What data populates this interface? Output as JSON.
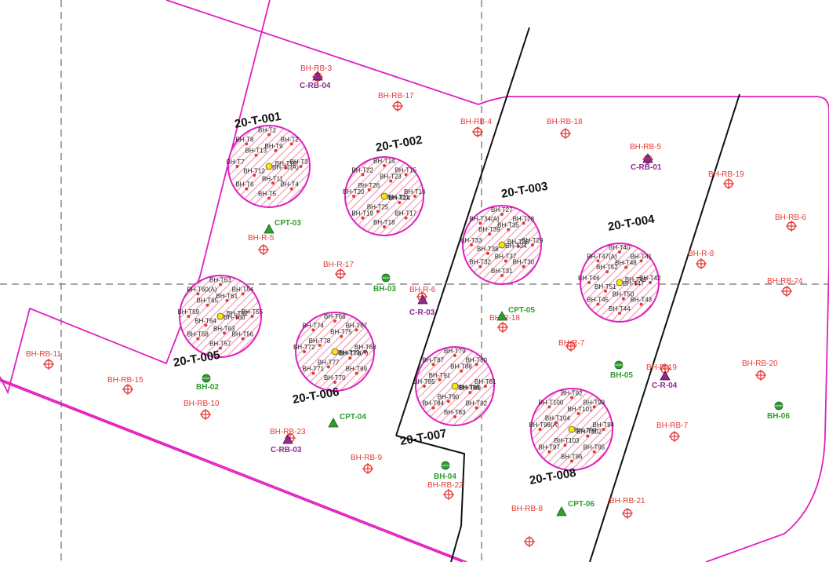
{
  "colors": {
    "boundary": "#e020c0",
    "grid_line": "#888888",
    "fault_line": "#111111",
    "borehole_red": "#e53935",
    "cpt_green": "#2e9e2e",
    "crb_purple": "#8e2a8e",
    "tank_hatch": "#f2a0b8"
  },
  "tanks": [
    {
      "id": "t1",
      "label": "20-T-001",
      "center_label": "BH-T7(A)",
      "boreholes": [
        "BH-T1",
        "BH-T2",
        "BH-T3",
        "BH-T4",
        "BH-T5",
        "BH-T6",
        "BH-T7",
        "BH-T8",
        "BH-T9",
        "BH-T10",
        "BH-T11",
        "BH-T12",
        "BH-T13"
      ]
    },
    {
      "id": "t2",
      "label": "20-T-002",
      "center_label": "BH-T21",
      "boreholes": [
        "BH-T14",
        "BH-T15",
        "BH-T16",
        "BH-T17",
        "BH-T18",
        "BH-T19",
        "BH-T20",
        "BH-T22",
        "BH-T23",
        "BH-T24",
        "BH-T25",
        "BH-T26"
      ]
    },
    {
      "id": "t3",
      "label": "20-T-003",
      "center_label": "BH-T34",
      "boreholes": [
        "BH-T27",
        "BH-T28",
        "BH-T29",
        "BH-T30",
        "BH-T31",
        "BH-T32",
        "BH-T33",
        "BH-T34(A)",
        "BH-T35",
        "BH-T36",
        "BH-T37",
        "BH-T38",
        "BH-T39"
      ]
    },
    {
      "id": "t4",
      "label": "20-T-004",
      "center_label": "BH-T47",
      "boreholes": [
        "BH-T40",
        "BH-T41",
        "BH-T42",
        "BH-T43",
        "BH-T44",
        "BH-T45",
        "BH-T46",
        "BH-T47(A)",
        "BH-T48",
        "BH-T49",
        "BH-T50",
        "BH-T51",
        "BH-T52"
      ]
    },
    {
      "id": "t5",
      "label": "20-T-005",
      "center_label": "BH-T60",
      "boreholes": [
        "BH-T53",
        "BH-T54",
        "BH-T55",
        "BH-T56",
        "BH-T57",
        "BH-T58",
        "BH-T59",
        "BH-T60(A)",
        "BH-T61",
        "BH-T62",
        "BH-T63",
        "BH-T64",
        "BH-T65"
      ]
    },
    {
      "id": "t6",
      "label": "20-T-006",
      "center_label": "BH-T73(A)",
      "boreholes": [
        "BH-T66",
        "BH-T67",
        "BH-T68",
        "BH-T69",
        "BH-T70",
        "BH-T71",
        "BH-T72",
        "BH-T74",
        "BH-T75",
        "BH-T76",
        "BH-T77",
        "BH-T78"
      ]
    },
    {
      "id": "t7",
      "label": "20-T-007",
      "center_label": "BH-T86",
      "boreholes": [
        "BH-T79",
        "BH-T80",
        "BH-T81",
        "BH-T82",
        "BH-T83",
        "BH-T84",
        "BH-T85",
        "BH-T87",
        "BH-T88",
        "BH-T89",
        "BH-T90",
        "BH-T91"
      ]
    },
    {
      "id": "t8",
      "label": "20-T-008",
      "center_label": "BH-T99",
      "boreholes": [
        "BH-T92",
        "BH-T93",
        "BH-T94",
        "BH-T95",
        "BH-T96",
        "BH-T97",
        "BH-T98(A)",
        "BH-T100",
        "BH-T101",
        "BH-T102",
        "BH-T103",
        "BH-T104"
      ]
    }
  ],
  "red_boreholes": [
    {
      "id": "rb3",
      "label": "BH-RB-3"
    },
    {
      "id": "rb17",
      "label": "BH-RB-17"
    },
    {
      "id": "rb4",
      "label": "BH-RB-4"
    },
    {
      "id": "rb18",
      "label": "BH-RB-18"
    },
    {
      "id": "rb5",
      "label": "BH-RB-5"
    },
    {
      "id": "rb19",
      "label": "BH-RB-19"
    },
    {
      "id": "rb6",
      "label": "BH-RB-6"
    },
    {
      "id": "r8",
      "label": "BH-R-8"
    },
    {
      "id": "rb24",
      "label": "BH-RB-24"
    },
    {
      "id": "r5",
      "label": "BH-R-5"
    },
    {
      "id": "r17",
      "label": "BH-R-17"
    },
    {
      "id": "r6",
      "label": "BH-R-6"
    },
    {
      "id": "r18",
      "label": "BH-R-18"
    },
    {
      "id": "r7",
      "label": "BH-R-7"
    },
    {
      "id": "r19",
      "label": "BH-R-19"
    },
    {
      "id": "rb20",
      "label": "BH-RB-20"
    },
    {
      "id": "rb11",
      "label": "BH-RB-11"
    },
    {
      "id": "rb15",
      "label": "BH-RB-15"
    },
    {
      "id": "rb10",
      "label": "BH-RB-10"
    },
    {
      "id": "rb23",
      "label": "BH-RB-23"
    },
    {
      "id": "rb9",
      "label": "BH-RB-9"
    },
    {
      "id": "rb22",
      "label": "BH-RB-22"
    },
    {
      "id": "rb7",
      "label": "BH-RB-7"
    },
    {
      "id": "rb8",
      "label": "BH-RB-8"
    },
    {
      "id": "rb21",
      "label": "BH-RB-21"
    }
  ],
  "green_points": [
    {
      "id": "cpt03",
      "label": "CPT-03",
      "kind": "triangle"
    },
    {
      "id": "bh03",
      "label": "BH-03",
      "kind": "diamond"
    },
    {
      "id": "cpt05",
      "label": "CPT-05",
      "kind": "triangle"
    },
    {
      "id": "bh05",
      "label": "BH-05",
      "kind": "diamond"
    },
    {
      "id": "bh06",
      "label": "BH-06",
      "kind": "diamond"
    },
    {
      "id": "bh02",
      "label": "BH-02",
      "kind": "diamond"
    },
    {
      "id": "cpt04",
      "label": "CPT-04",
      "kind": "triangle"
    },
    {
      "id": "bh04",
      "label": "BH-04",
      "kind": "diamond"
    },
    {
      "id": "cpt06",
      "label": "CPT-06",
      "kind": "triangle"
    }
  ],
  "purple_points": [
    {
      "id": "crb04",
      "label": "C-RB-04"
    },
    {
      "id": "crb01",
      "label": "C-RB-01"
    },
    {
      "id": "cr03",
      "label": "C-R-03"
    },
    {
      "id": "cr04",
      "label": "C-R-04"
    },
    {
      "id": "crb03",
      "label": "C-RB-03"
    }
  ]
}
